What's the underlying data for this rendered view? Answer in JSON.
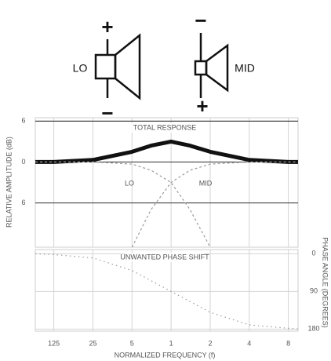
{
  "drivers": [
    {
      "label": "LO",
      "top": "+",
      "bottom": "−"
    },
    {
      "label": "MID",
      "top": "−",
      "bottom": "+"
    }
  ],
  "chart_data": [
    {
      "type": "line",
      "ylabel": "RELATIVE AMPLITUDE (dB)",
      "xlog": true,
      "xlim": [
        0.09,
        9.5
      ],
      "ylim": [
        -12.5,
        6.5
      ],
      "yticks": [
        {
          "value": 6,
          "label": "6"
        },
        0,
        {
          "value": -6,
          "label": "6"
        }
      ],
      "grid": true,
      "series": [
        {
          "name": "TOTAL RESPONSE",
          "color": "#111111",
          "x": [
            0.09,
            0.125,
            0.25,
            0.5,
            0.7,
            1,
            1.4,
            2,
            4,
            8,
            9.5
          ],
          "values": [
            0,
            0,
            0.3,
            1.5,
            2.4,
            3,
            2.4,
            1.5,
            0.3,
            0,
            0
          ]
        },
        {
          "name": "LO",
          "color": "#9a9a9a",
          "x": [
            0.09,
            0.25,
            0.5,
            0.7,
            1,
            1.4,
            2
          ],
          "values": [
            0,
            0,
            -0.3,
            -1.2,
            -3,
            -7,
            -12.5
          ]
        },
        {
          "name": "MID",
          "color": "#9a9a9a",
          "x": [
            0.5,
            0.7,
            1,
            1.4,
            2,
            4,
            9.5
          ],
          "values": [
            -12.5,
            -7,
            -3,
            -1.2,
            -0.3,
            0,
            0
          ]
        }
      ]
    },
    {
      "type": "line",
      "xlabel": "NORMALIZED FREQUENCY (f)",
      "y2label": "PHASE ANGLE (DEGREES)",
      "xlog": true,
      "xlim": [
        0.09,
        9.5
      ],
      "ylim": [
        185,
        -10
      ],
      "xticks": [
        {
          "value": 0.125,
          "label": "125"
        },
        {
          "value": 0.25,
          "label": "25"
        },
        {
          "value": 0.5,
          "label": "5"
        },
        1,
        2,
        4,
        8
      ],
      "yticks": [
        0,
        90,
        180
      ],
      "grid": true,
      "series": [
        {
          "name": "UNWANTED PHASE SHIFT",
          "color": "#9a9a9a",
          "x": [
            0.09,
            0.125,
            0.25,
            0.5,
            1,
            2,
            4,
            8,
            9.5
          ],
          "values": [
            0,
            2,
            10,
            40,
            90,
            140,
            170,
            178,
            180
          ]
        }
      ]
    }
  ]
}
